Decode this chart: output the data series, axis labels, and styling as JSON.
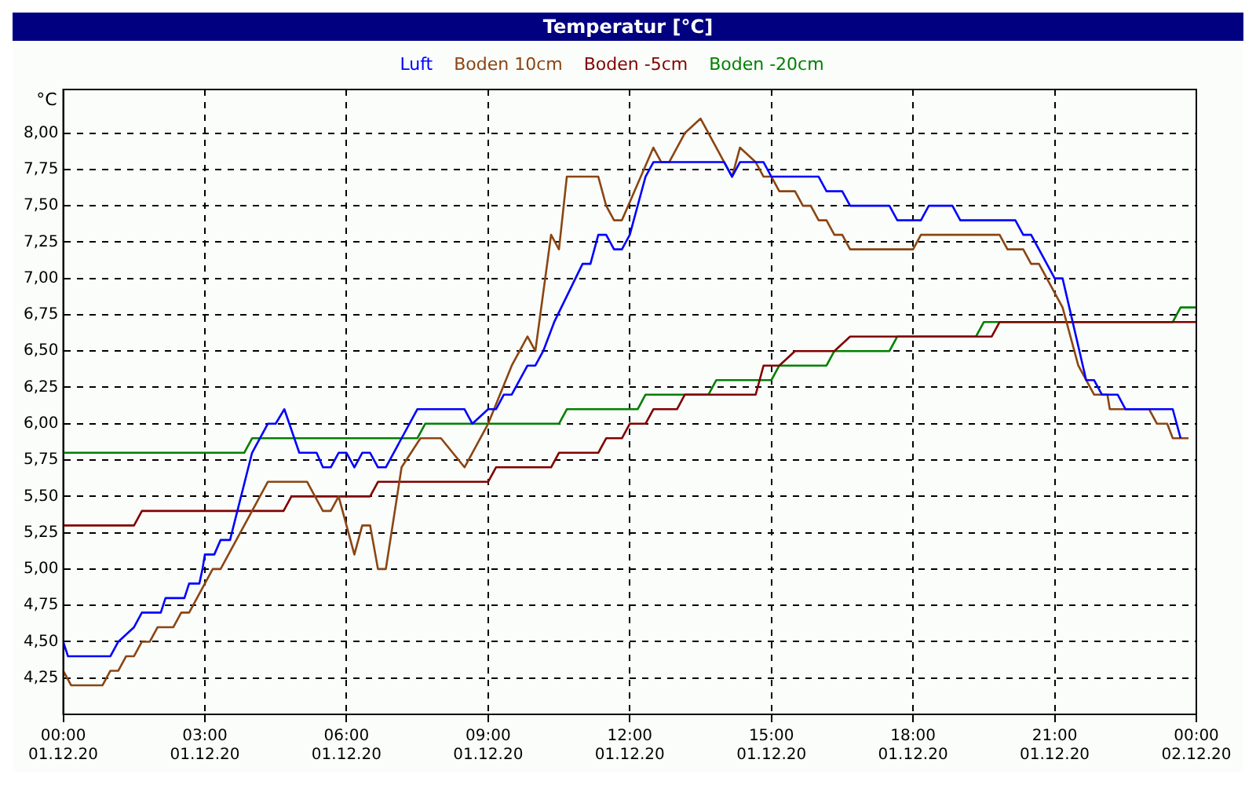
{
  "chart_data": {
    "type": "line",
    "title": "Temperatur [°C]",
    "ylabel": "°C",
    "xlim": [
      "--12-01T00:00",
      "--12-02T00:00"
    ],
    "xticks": [
      {
        "value": "--12-01T00:00",
        "label": "00:00 01.12.20"
      },
      {
        "value": "--12-01T03:00",
        "label": "03:00 01.12.20"
      },
      {
        "value": "--12-01T06:00",
        "label": "06:00 01.12.20"
      },
      {
        "value": "--12-01T09:00",
        "label": "09:00 01.12.20"
      },
      {
        "value": "--12-01T12:00",
        "label": "12:00 01.12.20"
      },
      {
        "value": "--12-01T15:00",
        "label": "15:00 01.12.20"
      },
      {
        "value": "--12-01T18:00",
        "label": "18:00 01.12.20"
      },
      {
        "value": "--12-01T21:00",
        "label": "21:00 01.12.20"
      },
      {
        "value": "--12-02T00:00",
        "label": "00:00 02.12.20"
      }
    ],
    "ylim": [
      4.0,
      8.3
    ],
    "yticks": [
      {
        "value": 4.25,
        "label": "4,25"
      },
      {
        "value": 4.5,
        "label": "4,50"
      },
      {
        "value": 4.75,
        "label": "4,75"
      },
      {
        "value": 5,
        "label": "5,00"
      },
      {
        "value": 5.25,
        "label": "5,25"
      },
      {
        "value": 5.5,
        "label": "5,50"
      },
      {
        "value": 5.75,
        "label": "5,75"
      },
      {
        "value": 6,
        "label": "6,00"
      },
      {
        "value": 6.25,
        "label": "6,25"
      },
      {
        "value": 6.5,
        "label": "6,50"
      },
      {
        "value": 6.75,
        "label": "6,75"
      },
      {
        "value": 7,
        "label": "7,00"
      },
      {
        "value": 7.25,
        "label": "7,25"
      },
      {
        "value": 7.5,
        "label": "7,50"
      },
      {
        "value": 7.75,
        "label": "7,75"
      },
      {
        "value": 8,
        "label": "8,00"
      }
    ],
    "grid": true,
    "legend": "top",
    "marker": "none",
    "line_style": "solid",
    "series": [
      {
        "name": "Luft",
        "color": "#0000ff",
        "x": [
          "--12-01T00:00",
          "--12-01T00:06",
          "--12-01T01:00",
          "--12-01T01:10",
          "--12-01T01:30",
          "--12-01T01:40",
          "--12-01T02:04",
          "--12-01T02:10",
          "--12-01T02:34",
          "--12-01T02:40",
          "--12-01T02:53",
          "--12-01T02:57",
          "--12-01T03:00",
          "--12-01T03:12",
          "--12-01T03:20",
          "--12-01T03:32",
          "--12-01T04:00",
          "--12-01T04:20",
          "--12-01T04:30",
          "--12-01T04:41",
          "--12-01T05:00",
          "--12-01T05:22",
          "--12-01T05:30",
          "--12-01T05:40",
          "--12-01T05:50",
          "--12-01T06:00",
          "--12-01T06:10",
          "--12-01T06:20",
          "--12-01T06:30",
          "--12-01T06:40",
          "--12-01T06:50",
          "--12-01T07:30",
          "--12-01T08:30",
          "--12-01T08:40",
          "--12-01T09:00",
          "--12-01T09:10",
          "--12-01T09:20",
          "--12-01T09:30",
          "--12-01T09:40",
          "--12-01T09:50",
          "--12-01T10:00",
          "--12-01T10:10",
          "--12-01T10:24",
          "--12-01T11:00",
          "--12-01T11:10",
          "--12-01T11:20",
          "--12-01T11:30",
          "--12-01T11:40",
          "--12-01T11:50",
          "--12-01T12:00",
          "--12-01T12:20",
          "--12-01T12:30",
          "--12-01T14:00",
          "--12-01T14:10",
          "--12-01T14:20",
          "--12-01T14:50",
          "--12-01T15:00",
          "--12-01T16:00",
          "--12-01T16:10",
          "--12-01T16:30",
          "--12-01T16:40",
          "--12-01T17:30",
          "--12-01T17:40",
          "--12-01T18:10",
          "--12-01T18:20",
          "--12-01T18:50",
          "--12-01T19:00",
          "--12-01T20:10",
          "--12-01T20:20",
          "--12-01T20:30",
          "--12-01T21:00",
          "--12-01T21:10",
          "--12-01T21:40",
          "--12-01T21:50",
          "--12-01T22:00",
          "--12-01T22:20",
          "--12-01T22:30",
          "--12-01T23:30",
          "--12-01T23:40"
        ],
        "values": [
          4.5,
          4.4,
          4.4,
          4.5,
          4.6,
          4.7,
          4.7,
          4.8,
          4.8,
          4.9,
          4.9,
          5.0,
          5.1,
          5.1,
          5.2,
          5.2,
          5.8,
          6.0,
          6.0,
          6.1,
          5.8,
          5.8,
          5.7,
          5.7,
          5.8,
          5.8,
          5.7,
          5.8,
          5.8,
          5.7,
          5.7,
          6.1,
          6.1,
          6.0,
          6.1,
          6.1,
          6.2,
          6.2,
          6.3,
          6.4,
          6.4,
          6.5,
          6.7,
          7.1,
          7.1,
          7.3,
          7.3,
          7.2,
          7.2,
          7.3,
          7.7,
          7.8,
          7.8,
          7.7,
          7.8,
          7.8,
          7.7,
          7.7,
          7.6,
          7.6,
          7.5,
          7.5,
          7.4,
          7.4,
          7.5,
          7.5,
          7.4,
          7.4,
          7.3,
          7.3,
          7.0,
          7.0,
          6.3,
          6.3,
          6.2,
          6.2,
          6.1,
          6.1,
          5.9
        ]
      },
      {
        "name": "Boden 10cm",
        "color": "#8b4513",
        "x": [
          "--12-01T00:00",
          "--12-01T00:10",
          "--12-01T00:50",
          "--12-01T01:00",
          "--12-01T01:10",
          "--12-01T01:20",
          "--12-01T01:30",
          "--12-01T01:40",
          "--12-01T01:50",
          "--12-01T02:00",
          "--12-01T02:20",
          "--12-01T02:30",
          "--12-01T02:40",
          "--12-01T03:10",
          "--12-01T03:20",
          "--12-01T04:20",
          "--12-01T05:10",
          "--12-01T05:30",
          "--12-01T05:40",
          "--12-01T05:50",
          "--12-01T06:10",
          "--12-01T06:20",
          "--12-01T06:30",
          "--12-01T06:40",
          "--12-01T06:50",
          "--12-01T07:10",
          "--12-01T07:34",
          "--12-01T08:00",
          "--12-01T08:30",
          "--12-01T09:00",
          "--12-01T09:30",
          "--12-01T09:50",
          "--12-01T10:00",
          "--12-01T10:20",
          "--12-01T10:30",
          "--12-01T10:40",
          "--12-01T11:20",
          "--12-01T11:30",
          "--12-01T11:40",
          "--12-01T11:50",
          "--12-01T12:06",
          "--12-01T12:30",
          "--12-01T12:40",
          "--12-01T12:50",
          "--12-01T13:10",
          "--12-01T13:30",
          "--12-01T14:10",
          "--12-01T14:20",
          "--12-01T14:40",
          "--12-01T14:50",
          "--12-01T15:00",
          "--12-01T15:10",
          "--12-01T15:30",
          "--12-01T15:40",
          "--12-01T15:50",
          "--12-01T16:00",
          "--12-01T16:10",
          "--12-01T16:20",
          "--12-01T16:30",
          "--12-01T16:40",
          "--12-01T18:00",
          "--12-01T18:10",
          "--12-01T19:50",
          "--12-01T20:00",
          "--12-01T20:20",
          "--12-01T20:30",
          "--12-01T20:40",
          "--12-01T21:00",
          "--12-01T21:10",
          "--12-01T21:30",
          "--12-01T21:50",
          "--12-01T22:07",
          "--12-01T22:10",
          "--12-01T23:00",
          "--12-01T23:10",
          "--12-01T23:23",
          "--12-01T23:30",
          "--12-01T23:50"
        ],
        "values": [
          4.3,
          4.2,
          4.2,
          4.3,
          4.3,
          4.4,
          4.4,
          4.5,
          4.5,
          4.6,
          4.6,
          4.7,
          4.7,
          5.0,
          5.0,
          5.6,
          5.6,
          5.4,
          5.4,
          5.5,
          5.1,
          5.3,
          5.3,
          5.0,
          5.0,
          5.7,
          5.9,
          5.9,
          5.7,
          6.0,
          6.4,
          6.6,
          6.5,
          7.3,
          7.2,
          7.7,
          7.7,
          7.5,
          7.4,
          7.4,
          7.6,
          7.9,
          7.8,
          7.8,
          8.0,
          8.1,
          7.7,
          7.9,
          7.8,
          7.7,
          7.7,
          7.6,
          7.6,
          7.5,
          7.5,
          7.4,
          7.4,
          7.3,
          7.3,
          7.2,
          7.2,
          7.3,
          7.3,
          7.2,
          7.2,
          7.1,
          7.1,
          6.9,
          6.8,
          6.4,
          6.2,
          6.2,
          6.1,
          6.1,
          6.0,
          6.0,
          5.9,
          5.9
        ]
      },
      {
        "name": "Boden -5cm",
        "color": "#800000",
        "x": [
          "--12-01T00:00",
          "--12-01T01:30",
          "--12-01T01:40",
          "--12-01T04:40",
          "--12-01T04:50",
          "--12-01T06:30",
          "--12-01T06:40",
          "--12-01T09:00",
          "--12-01T09:10",
          "--12-01T10:20",
          "--12-01T10:30",
          "--12-01T11:20",
          "--12-01T11:30",
          "--12-01T11:50",
          "--12-01T12:00",
          "--12-01T12:20",
          "--12-01T12:30",
          "--12-01T13:00",
          "--12-01T13:10",
          "--12-01T14:40",
          "--12-01T14:50",
          "--12-01T15:10",
          "--12-01T15:30",
          "--12-01T16:20",
          "--12-01T16:40",
          "--12-01T19:40",
          "--12-01T19:50",
          "--12-02T00:00"
        ],
        "values": [
          5.3,
          5.3,
          5.4,
          5.4,
          5.5,
          5.5,
          5.6,
          5.6,
          5.7,
          5.7,
          5.8,
          5.8,
          5.9,
          5.9,
          6.0,
          6.0,
          6.1,
          6.1,
          6.2,
          6.2,
          6.4,
          6.4,
          6.5,
          6.5,
          6.6,
          6.6,
          6.7,
          6.7
        ]
      },
      {
        "name": "Boden -20cm",
        "color": "#008000",
        "x": [
          "--12-01T00:00",
          "--12-01T03:50",
          "--12-01T04:00",
          "--12-01T07:30",
          "--12-01T07:40",
          "--12-01T10:30",
          "--12-01T10:40",
          "--12-01T12:10",
          "--12-01T12:20",
          "--12-01T13:40",
          "--12-01T13:50",
          "--12-01T15:00",
          "--12-01T15:10",
          "--12-01T16:10",
          "--12-01T16:20",
          "--12-01T17:30",
          "--12-01T17:40",
          "--12-01T19:20",
          "--12-01T19:30",
          "--12-01T23:30",
          "--12-01T23:40",
          "--12-02T00:00"
        ],
        "values": [
          5.8,
          5.8,
          5.9,
          5.9,
          6.0,
          6.0,
          6.1,
          6.1,
          6.2,
          6.2,
          6.3,
          6.3,
          6.4,
          6.4,
          6.5,
          6.5,
          6.6,
          6.6,
          6.7,
          6.7,
          6.8,
          6.8
        ]
      }
    ]
  }
}
